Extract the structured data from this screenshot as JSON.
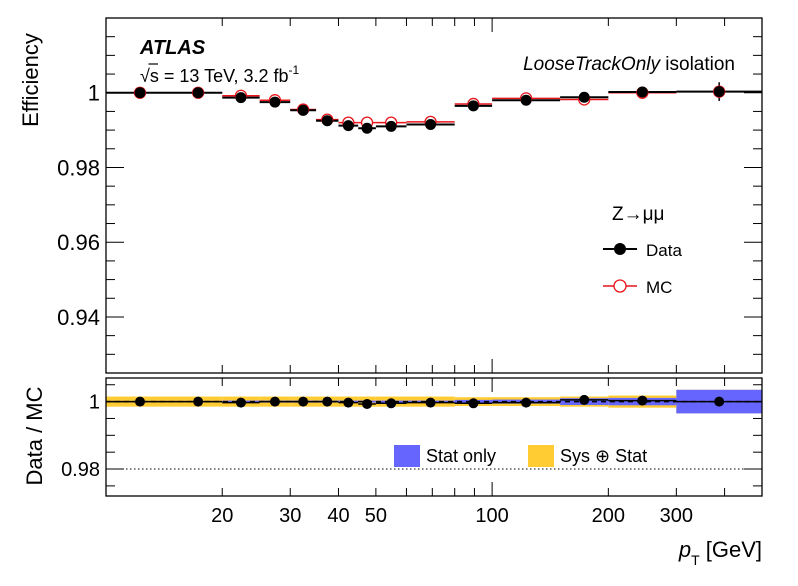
{
  "chart_data": [
    {
      "type": "scatter",
      "panel": "efficiency",
      "ylabel": "Efficiency",
      "xscale": "log",
      "xlim": [
        10,
        500
      ],
      "ylim": [
        0.925,
        1.02
      ],
      "yticks": [
        0.94,
        0.96,
        0.98,
        1
      ],
      "ytick_labels": [
        "0.94",
        "0.96",
        "0.98",
        "1"
      ],
      "labels": {
        "experiment": "ATLAS",
        "energy": "√s = 13 TeV, 3.2 fb",
        "energy_sup": "-1",
        "wp_italic": "LooseTrackOnly",
        "wp_rest": " isolation",
        "process": "Z→μμ"
      },
      "legend": {
        "placement": "center-right",
        "entries": [
          "Data",
          "MC"
        ]
      },
      "bins": [
        [
          10,
          15
        ],
        [
          15,
          20
        ],
        [
          20,
          25
        ],
        [
          25,
          30
        ],
        [
          30,
          35
        ],
        [
          35,
          40
        ],
        [
          40,
          45
        ],
        [
          45,
          50
        ],
        [
          50,
          60
        ],
        [
          60,
          80
        ],
        [
          80,
          100
        ],
        [
          100,
          150
        ],
        [
          150,
          200
        ],
        [
          200,
          300
        ],
        [
          300,
          500
        ]
      ],
      "series": [
        {
          "name": "Data",
          "color": "#000000",
          "marker": "filled-circle",
          "values": [
            1.0,
            1.0,
            0.9987,
            0.9975,
            0.9953,
            0.9925,
            0.9912,
            0.9905,
            0.991,
            0.9915,
            0.9965,
            0.998,
            0.9988,
            1.0002,
            1.0003
          ],
          "errors": [
            0.0002,
            0.0002,
            0.0005,
            0.0005,
            0.0005,
            0.0004,
            0.0004,
            0.0004,
            0.0004,
            0.0004,
            0.0006,
            0.0007,
            0.001,
            0.0012,
            0.0025
          ]
        },
        {
          "name": "MC",
          "color": "#e8141a",
          "marker": "open-circle",
          "values": [
            1.0,
            1.0,
            0.9992,
            0.998,
            0.9955,
            0.9928,
            0.992,
            0.992,
            0.992,
            0.9922,
            0.997,
            0.9985,
            0.9982,
            1.0,
            1.0003
          ]
        }
      ]
    },
    {
      "type": "scatter",
      "panel": "ratio",
      "ylabel": "Data / MC",
      "xlabel": "p",
      "xlabel_sub": "T",
      "xlabel_unit": " [GeV]",
      "xscale": "log",
      "xlim": [
        10,
        500
      ],
      "ylim": [
        0.972,
        1.007
      ],
      "yticks": [
        0.98,
        1
      ],
      "ytick_labels": [
        "0.98",
        "1"
      ],
      "xtick_labels": [
        {
          "value": 20,
          "label": "20"
        },
        {
          "value": 30,
          "label": "30"
        },
        {
          "value": 40,
          "label": "40"
        },
        {
          "value": 50,
          "label": "50"
        },
        {
          "value": 100,
          "label": "100"
        },
        {
          "value": 200,
          "label": "200"
        },
        {
          "value": 300,
          "label": "300"
        }
      ],
      "legend": {
        "placement": "bottom-right",
        "entries": [
          "Stat only",
          "Sys ⊕ Stat"
        ]
      },
      "colors": {
        "stat": "#6666ff",
        "sys": "#ffcc33"
      },
      "bins": [
        [
          10,
          15
        ],
        [
          15,
          20
        ],
        [
          20,
          25
        ],
        [
          25,
          30
        ],
        [
          30,
          35
        ],
        [
          35,
          40
        ],
        [
          40,
          45
        ],
        [
          45,
          50
        ],
        [
          50,
          60
        ],
        [
          60,
          80
        ],
        [
          80,
          100
        ],
        [
          100,
          150
        ],
        [
          150,
          200
        ],
        [
          200,
          300
        ],
        [
          300,
          500
        ]
      ],
      "ratio": [
        1.0,
        1.0,
        0.9997,
        1.0,
        1.0,
        1.0,
        0.9997,
        0.9993,
        0.9995,
        0.9997,
        0.9995,
        0.9997,
        1.0005,
        1.0003,
        1.0
      ],
      "ratio_errors": [
        0.0003,
        0.0003,
        0.0004,
        0.0004,
        0.0004,
        0.0004,
        0.0004,
        0.0004,
        0.0004,
        0.0004,
        0.0006,
        0.0007,
        0.0008,
        0.0008,
        0.0012
      ],
      "stat_band": [
        0.0002,
        0.0002,
        0.0003,
        0.0003,
        0.0003,
        0.0003,
        0.0003,
        0.0003,
        0.0003,
        0.0003,
        0.0005,
        0.0006,
        0.001,
        0.0011,
        0.0035
      ],
      "sys_band": [
        0.0015,
        0.0015,
        0.0015,
        0.0015,
        0.0015,
        0.0015,
        0.0015,
        0.0015,
        0.0015,
        0.0015,
        0.0013,
        0.0013,
        0.0015,
        0.0018,
        0.0035
      ],
      "reference_lines": [
        1,
        0.98
      ]
    }
  ]
}
